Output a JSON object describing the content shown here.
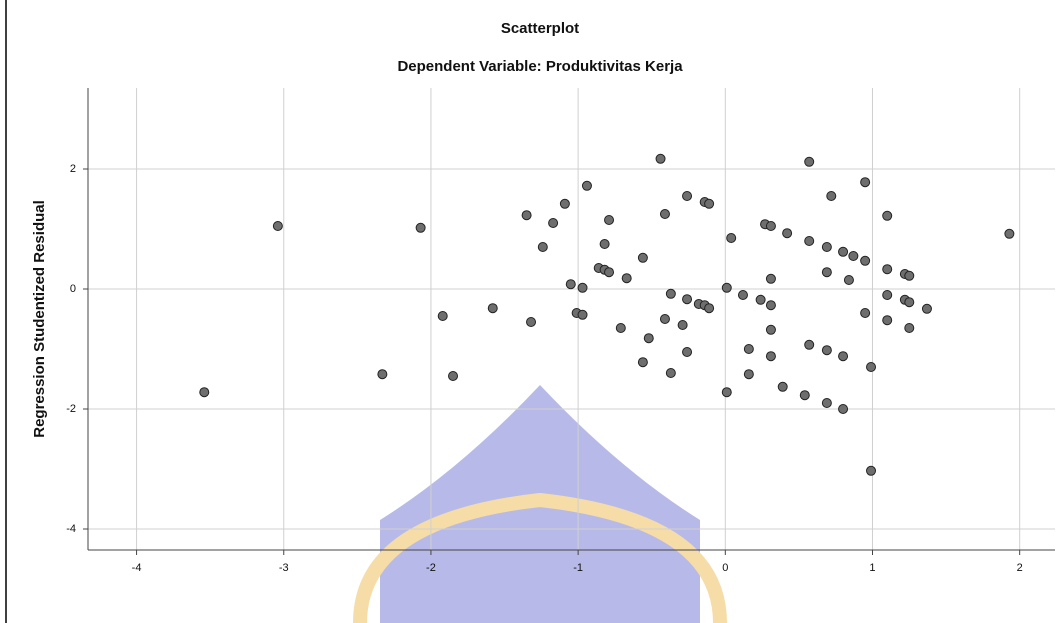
{
  "chart_data": {
    "type": "scatter",
    "title": "Scatterplot",
    "subtitle": "Dependent Variable: Produktivitas Kerja",
    "y_label": "Regression Studentized Residual",
    "xlim": [
      -4.33,
      2.24
    ],
    "ylim": [
      -4.35,
      3.35
    ],
    "xticks": [
      -4,
      -3,
      -2,
      -1,
      0,
      1,
      2
    ],
    "yticks": [
      2,
      0,
      -2,
      -4
    ],
    "grid": true,
    "color": "#6e6e6e",
    "x": [
      -3.54,
      -3.04,
      -2.07,
      -2.33,
      -1.92,
      -1.85,
      -1.58,
      -1.35,
      -1.32,
      -1.24,
      -1.17,
      -1.09,
      -1.05,
      -0.97,
      -1.01,
      -0.97,
      -0.94,
      -0.86,
      -0.82,
      -0.82,
      -0.79,
      -0.79,
      -0.71,
      -0.67,
      -0.56,
      -0.52,
      -0.56,
      -0.44,
      -0.41,
      -0.41,
      -0.37,
      -0.37,
      -0.29,
      -0.26,
      -0.26,
      -0.26,
      -0.18,
      -0.14,
      -0.14,
      -0.11,
      -0.11,
      0.01,
      0.04,
      0.01,
      0.12,
      0.16,
      0.16,
      0.24,
      0.27,
      0.31,
      0.31,
      0.31,
      0.31,
      0.31,
      0.39,
      0.42,
      0.54,
      0.57,
      0.57,
      0.57,
      0.69,
      0.69,
      0.69,
      0.69,
      0.72,
      0.8,
      0.8,
      0.8,
      0.84,
      0.87,
      0.95,
      0.95,
      0.95,
      0.99,
      0.99,
      1.1,
      1.1,
      1.1,
      1.1,
      1.22,
      1.25,
      1.22,
      1.25,
      1.25,
      1.37,
      1.93
    ],
    "values": [
      -1.72,
      1.05,
      1.02,
      -1.42,
      -0.45,
      -1.45,
      -0.32,
      1.23,
      -0.55,
      0.7,
      1.1,
      1.42,
      0.08,
      0.02,
      -0.4,
      -0.43,
      1.72,
      0.35,
      0.75,
      0.32,
      0.28,
      1.15,
      -0.65,
      0.18,
      0.52,
      -0.82,
      -1.22,
      2.17,
      1.25,
      -0.5,
      -0.08,
      -1.4,
      -0.6,
      1.55,
      -0.17,
      -1.05,
      -0.25,
      -0.27,
      1.45,
      1.42,
      -0.32,
      0.02,
      0.85,
      -1.72,
      -0.1,
      -1.0,
      -1.42,
      -0.18,
      1.08,
      1.05,
      -0.27,
      0.17,
      -0.68,
      -1.12,
      -1.63,
      0.93,
      -1.77,
      0.8,
      -0.93,
      2.12,
      0.7,
      0.28,
      -1.02,
      -1.9,
      1.55,
      0.62,
      -1.12,
      -2.0,
      0.15,
      0.55,
      0.47,
      1.78,
      -0.4,
      -1.3,
      -3.03,
      1.22,
      0.33,
      -0.1,
      -0.52,
      0.25,
      0.22,
      -0.18,
      -0.22,
      -0.65,
      -0.33,
      0.92
    ]
  }
}
